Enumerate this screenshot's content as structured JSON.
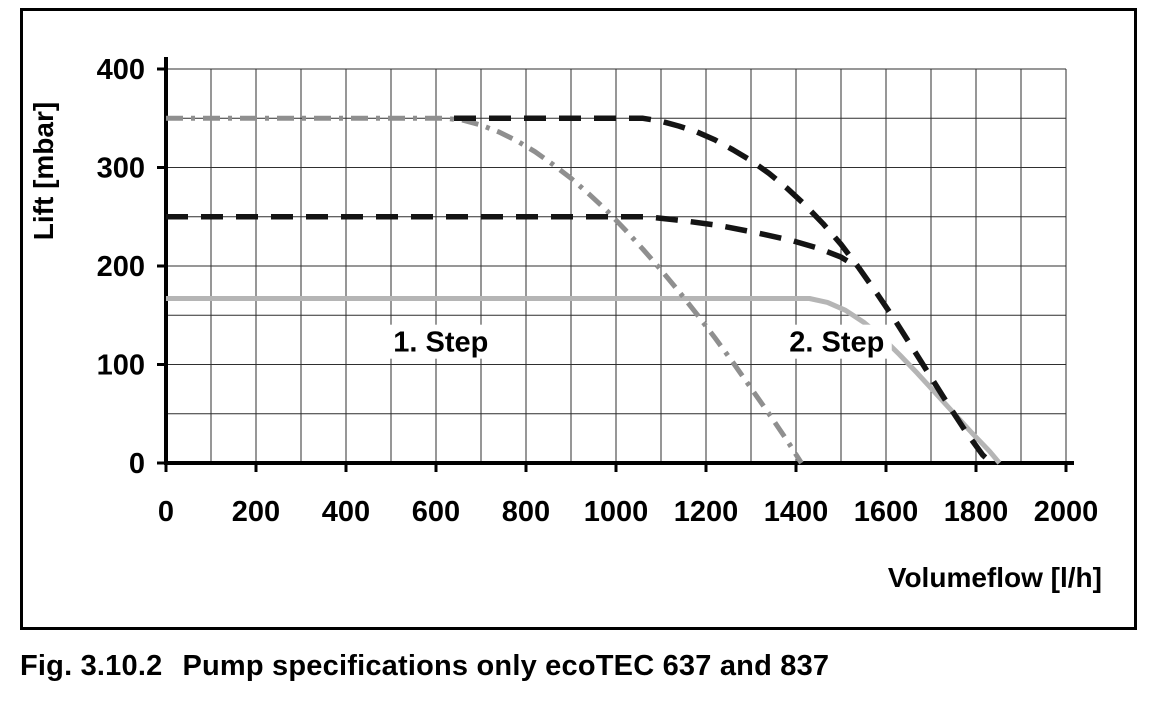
{
  "figure": {
    "caption_label": "Fig. 3.10.2",
    "caption_text": "Pump specifications only ecoTEC 637 and 837"
  },
  "chart_data": {
    "type": "line",
    "title": "",
    "xlabel": "Volumeflow [l/h]",
    "ylabel": "Lift [mbar]",
    "xlim": [
      0,
      2000
    ],
    "ylim": [
      0,
      400
    ],
    "x_major_ticks": [
      0,
      200,
      400,
      600,
      800,
      1000,
      1200,
      1400,
      1600,
      1800,
      2000
    ],
    "y_major_ticks": [
      0,
      100,
      200,
      300,
      400
    ],
    "x_minor_step": 100,
    "y_minor_step": 50,
    "grid": true,
    "legend": "none",
    "colors": {
      "black_curve": "#141414",
      "gray_dashdot_curve": "#8f8f8f",
      "gray_solid_curve": "#b5b5b5",
      "gridline": "#2f2f2f"
    },
    "annotations": [
      {
        "text": "1. Step",
        "x": 505,
        "y": 113
      },
      {
        "text": "2. Step",
        "x": 1385,
        "y": 113
      }
    ],
    "series": [
      {
        "name": "pump-limit-curve-gray-solid",
        "style": "solid",
        "color": "#b5b5b5",
        "width": 5,
        "points": [
          [
            0,
            167
          ],
          [
            1430,
            167
          ],
          [
            1470,
            163
          ],
          [
            1510,
            155
          ],
          [
            1550,
            143
          ],
          [
            1590,
            128
          ],
          [
            1630,
            110
          ],
          [
            1670,
            91
          ],
          [
            1710,
            71
          ],
          [
            1750,
            51
          ],
          [
            1790,
            31
          ],
          [
            1830,
            12
          ],
          [
            1852,
            0
          ]
        ]
      },
      {
        "name": "step1-max-curve-gray-dashdot",
        "style": "dashdot",
        "color": "#8f8f8f",
        "width": 5,
        "points": [
          [
            0,
            350
          ],
          [
            620,
            350
          ],
          [
            660,
            348
          ],
          [
            700,
            343
          ],
          [
            740,
            336
          ],
          [
            780,
            327
          ],
          [
            820,
            316
          ],
          [
            860,
            303
          ],
          [
            900,
            289
          ],
          [
            940,
            273
          ],
          [
            980,
            256
          ],
          [
            1020,
            237
          ],
          [
            1060,
            217
          ],
          [
            1100,
            196
          ],
          [
            1140,
            174
          ],
          [
            1180,
            151
          ],
          [
            1220,
            127
          ],
          [
            1260,
            102
          ],
          [
            1300,
            76
          ],
          [
            1340,
            50
          ],
          [
            1380,
            23
          ],
          [
            1412,
            0
          ]
        ]
      },
      {
        "name": "step2-min-curve-black-dashed",
        "style": "dashed",
        "color": "#141414",
        "width": 5.5,
        "points": [
          [
            0,
            250
          ],
          [
            1070,
            250
          ],
          [
            1150,
            246
          ],
          [
            1230,
            241
          ],
          [
            1310,
            234
          ],
          [
            1390,
            226
          ],
          [
            1450,
            218
          ],
          [
            1500,
            209
          ],
          [
            1540,
            198
          ]
        ]
      },
      {
        "name": "step2-max-curve-black-dashed",
        "style": "dashed",
        "color": "#141414",
        "width": 5.5,
        "points": [
          [
            640,
            350
          ],
          [
            1060,
            350
          ],
          [
            1100,
            347
          ],
          [
            1140,
            342
          ],
          [
            1180,
            336
          ],
          [
            1220,
            328
          ],
          [
            1260,
            318
          ],
          [
            1300,
            307
          ],
          [
            1340,
            294
          ],
          [
            1380,
            279
          ],
          [
            1420,
            262
          ],
          [
            1460,
            243
          ],
          [
            1500,
            222
          ],
          [
            1540,
            198
          ],
          [
            1580,
            172
          ],
          [
            1620,
            145
          ],
          [
            1660,
            116
          ],
          [
            1700,
            87
          ],
          [
            1740,
            58
          ],
          [
            1780,
            30
          ],
          [
            1815,
            8
          ],
          [
            1835,
            0
          ]
        ]
      }
    ]
  }
}
